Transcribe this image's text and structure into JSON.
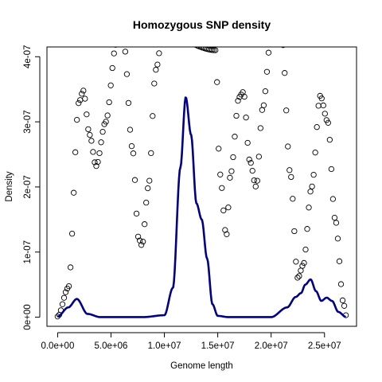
{
  "chart_data": {
    "type": "line",
    "title": "Homozygous SNP density",
    "xlabel": "Genome length",
    "ylabel": "Density",
    "xlim": [
      -1000000,
      28000000
    ],
    "ylim": [
      -1.4e-08,
      4.15e-07
    ],
    "x_ticks": [
      0,
      5000000,
      10000000,
      15000000,
      20000000,
      25000000
    ],
    "x_tick_labels": [
      "0.0e+00",
      "5.0e+06",
      "1.0e+07",
      "1.5e+07",
      "2.0e+07",
      "2.5e+07"
    ],
    "y_ticks": [
      0,
      1e-07,
      2e-07,
      3e-07,
      4e-07
    ],
    "y_tick_labels": [
      "0e+00",
      "1e-07",
      "2e-07",
      "3e-07",
      "4e-07"
    ],
    "grid": false,
    "legend": "none",
    "series": [
      {
        "style": "points",
        "color": "#000000",
        "x": [
          0,
          1000000,
          2000000,
          2400000,
          3000000,
          3600000,
          4500000,
          5500000,
          6200000,
          7000000,
          7600000,
          7900000,
          8500000,
          9200000,
          9800000,
          10500000,
          14800000,
          15200000,
          15800000,
          16200000,
          17000000,
          17400000,
          18000000,
          18600000,
          19200000,
          20000000,
          21000000,
          21800000,
          22500000,
          23000000,
          23800000,
          24600000,
          25300000,
          26000000,
          26800000,
          27000000
        ],
        "y": [
          1e-09,
          4.5e-08,
          3.3e-07,
          3.48e-07,
          2.8e-07,
          2.32e-07,
          3e-07,
          4.2e-07,
          4.2e-07,
          2.6e-07,
          1.2e-07,
          1.1e-07,
          2e-07,
          3.8e-07,
          4.3e-07,
          4.3e-07,
          4.1e-07,
          2.2e-07,
          1.25e-07,
          2.2e-07,
          3.38e-07,
          3.46e-07,
          2.4e-07,
          2e-07,
          3.2e-07,
          4.3e-07,
          4.3e-07,
          2.2e-07,
          6e-08,
          8e-08,
          2e-07,
          3.4e-07,
          3e-07,
          1.5e-07,
          2e-08,
          3e-09
        ]
      },
      {
        "style": "line",
        "color": "#00008B",
        "x": [
          0,
          1000000,
          1800000,
          2800000,
          4000000,
          8000000,
          10000000,
          10800000,
          11500000,
          12000000,
          12500000,
          13000000,
          13500000,
          14000000,
          14500000,
          15000000,
          16000000,
          20000000,
          21500000,
          22300000,
          22800000,
          23200000,
          23700000,
          24200000,
          24700000,
          25200000,
          25700000,
          26300000,
          27000000
        ],
        "y": [
          1e-09,
          1.5e-08,
          2.8e-08,
          5e-09,
          1e-10,
          1e-10,
          3e-09,
          4.5e-08,
          2.3e-07,
          3.38e-07,
          2.8e-07,
          1.75e-07,
          1.5e-07,
          9e-08,
          2e-08,
          2e-09,
          1e-10,
          1e-10,
          1.5e-08,
          3.1e-08,
          3.7e-08,
          5e-08,
          5.8e-08,
          4e-08,
          2.5e-08,
          3e-08,
          2.5e-08,
          8e-09,
          5e-10
        ]
      }
    ]
  }
}
